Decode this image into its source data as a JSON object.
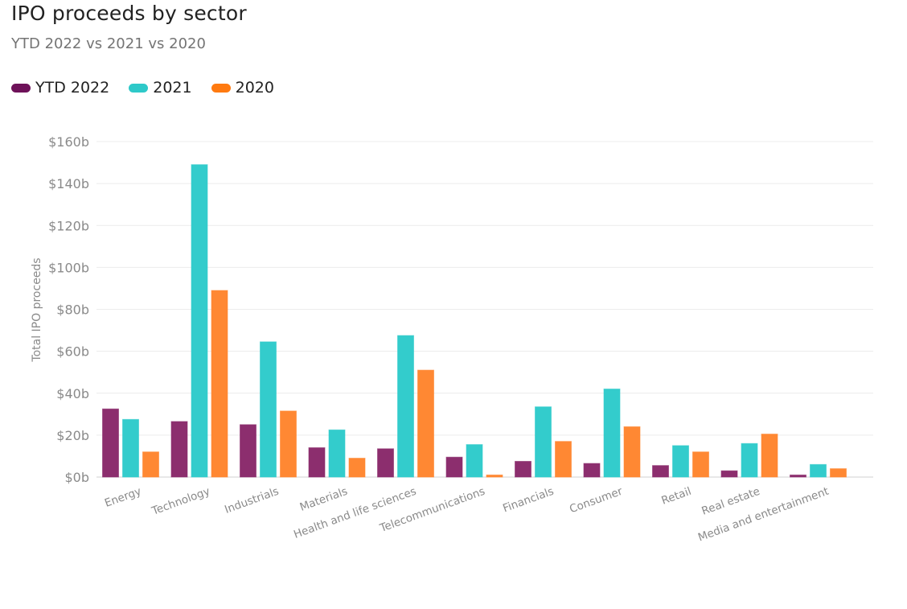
{
  "header": {
    "title": "IPO proceeds by sector",
    "subtitle": "YTD 2022 vs 2021 vs 2020"
  },
  "legend": [
    {
      "label": "YTD 2022",
      "color": "#6e1259"
    },
    {
      "label": "2021",
      "color": "#2ec9c9"
    },
    {
      "label": "2020",
      "color": "#ff7a10"
    }
  ],
  "chart_data": {
    "type": "bar",
    "title": "IPO proceeds by sector",
    "subtitle": "YTD 2022 vs 2021 vs 2020",
    "xlabel": "",
    "ylabel": "Total IPO proceeds",
    "ylim": [
      0,
      160
    ],
    "yticks": [
      0,
      20,
      40,
      60,
      80,
      100,
      120,
      140,
      160
    ],
    "ytick_labels": [
      "$0b",
      "$20b",
      "$40b",
      "$60b",
      "$80b",
      "$100b",
      "$120b",
      "$140b",
      "$160b"
    ],
    "grid": true,
    "legend_position": "top-left",
    "categories": [
      "Energy",
      "Technology",
      "Industrials",
      "Materials",
      "Health and life sciences",
      "Telecommunications",
      "Financials",
      "Consumer",
      "Retail",
      "Real estate",
      "Media and entertainment"
    ],
    "series": [
      {
        "name": "YTD 2022",
        "color": "#8c2e6e",
        "values": [
          32.5,
          26.5,
          25,
          14,
          13.5,
          9.5,
          7.5,
          6.5,
          5.5,
          3,
          1
        ]
      },
      {
        "name": "2021",
        "color": "#33cccc",
        "values": [
          27.5,
          149,
          64.5,
          22.5,
          67.5,
          15.5,
          33.5,
          42,
          15,
          16,
          6
        ]
      },
      {
        "name": "2020",
        "color": "#ff8833",
        "values": [
          12,
          89,
          31.5,
          9,
          51,
          1,
          17,
          24,
          12,
          20.5,
          4
        ]
      }
    ]
  }
}
